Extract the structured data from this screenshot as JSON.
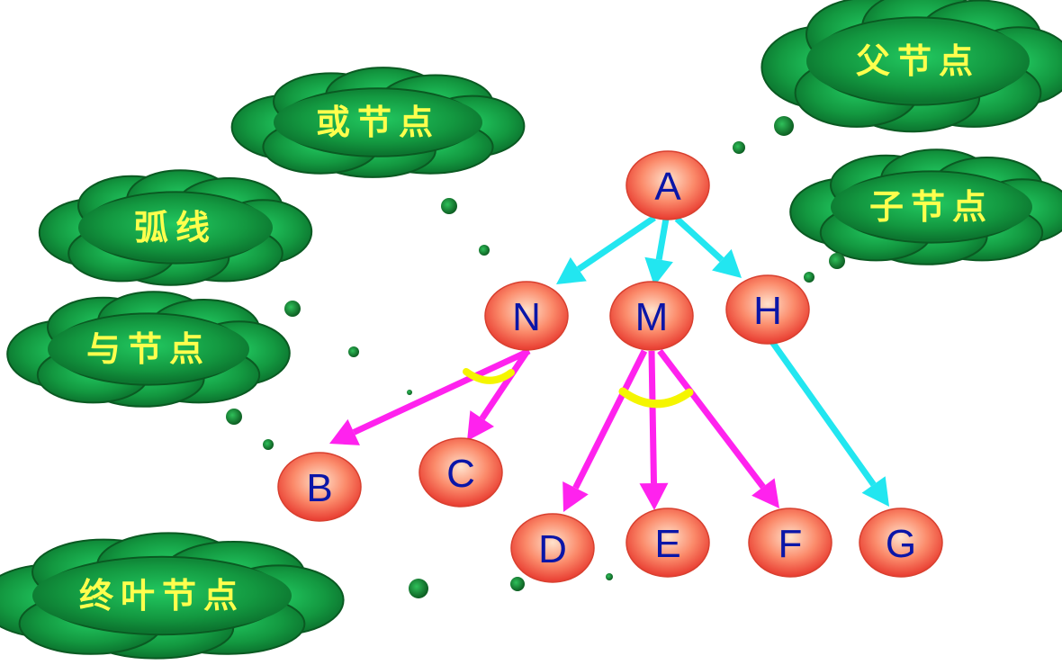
{
  "nodes": [
    {
      "id": "A",
      "label": "A"
    },
    {
      "id": "N",
      "label": "N"
    },
    {
      "id": "M",
      "label": "M"
    },
    {
      "id": "H",
      "label": "H"
    },
    {
      "id": "B",
      "label": "B"
    },
    {
      "id": "C",
      "label": "C"
    },
    {
      "id": "D",
      "label": "D"
    },
    {
      "id": "E",
      "label": "E"
    },
    {
      "id": "F",
      "label": "F"
    },
    {
      "id": "G",
      "label": "G"
    }
  ],
  "edges": [
    {
      "from": "A",
      "to": "N",
      "kind": "or"
    },
    {
      "from": "A",
      "to": "M",
      "kind": "or"
    },
    {
      "from": "A",
      "to": "H",
      "kind": "or"
    },
    {
      "from": "H",
      "to": "G",
      "kind": "or"
    },
    {
      "from": "N",
      "to": "B",
      "kind": "and"
    },
    {
      "from": "N",
      "to": "C",
      "kind": "and"
    },
    {
      "from": "M",
      "to": "D",
      "kind": "and"
    },
    {
      "from": "M",
      "to": "E",
      "kind": "and"
    },
    {
      "from": "M",
      "to": "F",
      "kind": "and"
    }
  ],
  "callouts": [
    {
      "id": "parent",
      "text": "父节点"
    },
    {
      "id": "child",
      "text": "子节点"
    },
    {
      "id": "or",
      "text": "或节点"
    },
    {
      "id": "arc",
      "text": "弧线"
    },
    {
      "id": "and",
      "text": "与节点"
    },
    {
      "id": "leaf",
      "text": "终叶节点"
    }
  ],
  "colors": {
    "or_edge": "#22e6f0",
    "and_edge": "#ff22ee",
    "and_arc": "#f5f500",
    "node_fill_center": "#ffd9c2",
    "node_fill_edge": "#f24a3c",
    "node_text": "#0a16a8",
    "cloud_fill": "#1a9a3c",
    "cloud_dark": "#0a5a22",
    "cloud_text": "#ffff4d",
    "dot": "#1b8a34"
  }
}
